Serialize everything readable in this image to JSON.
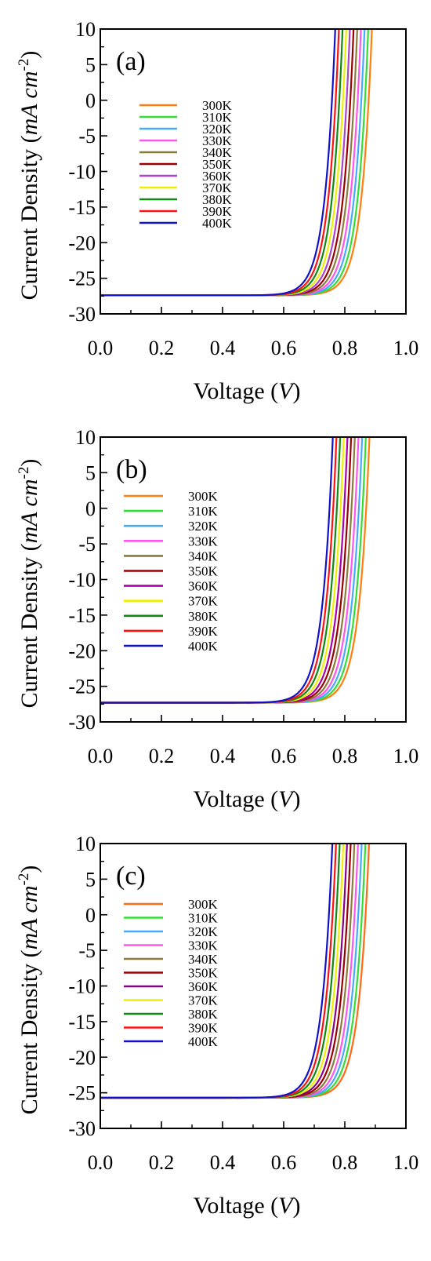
{
  "chart_data": [
    {
      "type": "line",
      "panel_label": "(a)",
      "xlabel_text": "Voltage (",
      "xlabel_unit": "V",
      "xlabel_close": ")",
      "ylabel_text": "Current Density (",
      "ylabel_unit": "mA cm",
      "ylabel_exp": "-2",
      "ylabel_close": ")",
      "xlim": [
        0.0,
        1.0
      ],
      "ylim": [
        -30,
        10
      ],
      "xticks": [
        "0.0",
        "0.2",
        "0.4",
        "0.6",
        "0.8",
        "1.0"
      ],
      "yticks": [
        "10",
        "5",
        "0",
        "-5",
        "-10",
        "-15",
        "-20",
        "-25",
        "-30"
      ],
      "jsc": -27.4,
      "voc": [
        0.878,
        0.866,
        0.854,
        0.842,
        0.83,
        0.818,
        0.806,
        0.794,
        0.782,
        0.77,
        0.758
      ],
      "legend_placement": "left",
      "series": [
        {
          "name": "300K",
          "color": "#ff7f0e"
        },
        {
          "name": "310K",
          "color": "#33dd33"
        },
        {
          "name": "320K",
          "color": "#44aaff"
        },
        {
          "name": "330K",
          "color": "#ff55ee"
        },
        {
          "name": "340K",
          "color": "#8b7a3a"
        },
        {
          "name": "350K",
          "color": "#990000"
        },
        {
          "name": "360K",
          "color": "#aa44cc"
        },
        {
          "name": "370K",
          "color": "#eeee00"
        },
        {
          "name": "380K",
          "color": "#118811"
        },
        {
          "name": "390K",
          "color": "#ff1111"
        },
        {
          "name": "400K",
          "color": "#1111cc"
        }
      ]
    },
    {
      "type": "line",
      "panel_label": "(b)",
      "xlabel_text": "Voltage (",
      "xlabel_unit": "V",
      "xlabel_close": ")",
      "ylabel_text": "Current Density (",
      "ylabel_unit": "mA cm",
      "ylabel_exp": "-2",
      "ylabel_close": ")",
      "xlim": [
        0.0,
        1.0
      ],
      "ylim": [
        -30,
        10
      ],
      "xticks": [
        "0.0",
        "0.2",
        "0.4",
        "0.6",
        "0.8",
        "1.0"
      ],
      "yticks": [
        "10",
        "5",
        "0",
        "-5",
        "-10",
        "-15",
        "-20",
        "-25",
        "-30"
      ],
      "jsc": -27.3,
      "voc": [
        0.87,
        0.858,
        0.846,
        0.834,
        0.822,
        0.81,
        0.798,
        0.786,
        0.774,
        0.762,
        0.75
      ],
      "legend_placement": "left",
      "series": [
        {
          "name": "300K",
          "color": "#ff7f0e"
        },
        {
          "name": "310K",
          "color": "#33dd33"
        },
        {
          "name": "320K",
          "color": "#44aaff"
        },
        {
          "name": "330K",
          "color": "#ff55ee"
        },
        {
          "name": "340K",
          "color": "#8b7a3a"
        },
        {
          "name": "350K",
          "color": "#990000"
        },
        {
          "name": "360K",
          "color": "#aa00aa"
        },
        {
          "name": "370K",
          "color": "#eeee00"
        },
        {
          "name": "380K",
          "color": "#118811"
        },
        {
          "name": "390K",
          "color": "#ff1111"
        },
        {
          "name": "400K",
          "color": "#1111cc"
        }
      ]
    },
    {
      "type": "line",
      "panel_label": "(c)",
      "xlabel_text": "Voltage (",
      "xlabel_unit": "V",
      "xlabel_close": ")",
      "ylabel_text": "Current Density (",
      "ylabel_unit": "mA cm",
      "ylabel_exp": "-2",
      "ylabel_close": ")",
      "xlim": [
        0.0,
        1.0
      ],
      "ylim": [
        -30,
        10
      ],
      "xticks": [
        "0.0",
        "0.2",
        "0.4",
        "0.6",
        "0.8",
        "1.0"
      ],
      "yticks": [
        "10",
        "5",
        "0",
        "-5",
        "-10",
        "-15",
        "-20",
        "-25",
        "-30"
      ],
      "jsc": -25.7,
      "voc": [
        0.868,
        0.856,
        0.844,
        0.832,
        0.82,
        0.808,
        0.796,
        0.784,
        0.772,
        0.76,
        0.748
      ],
      "legend_placement": "left",
      "series": [
        {
          "name": "300K",
          "color": "#ff6a13"
        },
        {
          "name": "310K",
          "color": "#33dd33"
        },
        {
          "name": "320K",
          "color": "#44aaff"
        },
        {
          "name": "330K",
          "color": "#ff55ee"
        },
        {
          "name": "340K",
          "color": "#8b7a3a"
        },
        {
          "name": "350K",
          "color": "#990000"
        },
        {
          "name": "360K",
          "color": "#880088"
        },
        {
          "name": "370K",
          "color": "#eeee00"
        },
        {
          "name": "380K",
          "color": "#118811"
        },
        {
          "name": "390K",
          "color": "#ff1111"
        },
        {
          "name": "400K",
          "color": "#1111cc"
        }
      ]
    }
  ]
}
